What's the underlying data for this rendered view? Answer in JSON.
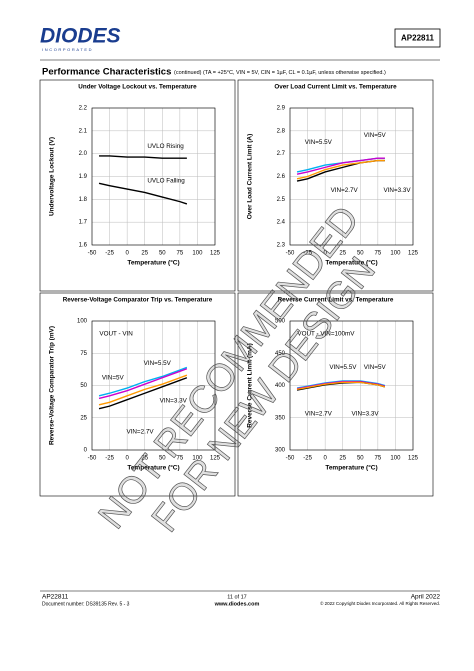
{
  "header": {
    "logo": "DIODES",
    "logo_sub": "INCORPORATED",
    "part": "AP22811"
  },
  "section": {
    "title": "Performance Characteristics",
    "conditions": "(continued) (TA = +25°C, VIN = 5V, CIN = 1µF, CL = 0.1µF, unless otherwise specified.)"
  },
  "chart_data": [
    {
      "type": "line",
      "title": "Under Voltage Lockout vs. Temperature",
      "xlabel": "Temperature (°C)",
      "ylabel": "Undervoltage Lockout (V)",
      "x": [
        -40,
        -25,
        0,
        25,
        50,
        75,
        85
      ],
      "xlim": [
        -50,
        125
      ],
      "xticks": [
        -50,
        -25,
        0,
        25,
        50,
        75,
        100,
        125
      ],
      "ylim": [
        1.6,
        2.2
      ],
      "yticks": [
        1.6,
        1.7,
        1.8,
        1.9,
        {
          "value": 2,
          "label": "2.0"
        },
        2.1,
        2.2
      ],
      "grid": true,
      "annotations": [],
      "series": [
        {
          "name": "UVLO Rising",
          "color": "#000000",
          "values": [
            1.99,
            1.99,
            1.985,
            1.985,
            1.98,
            1.98,
            1.98
          ]
        },
        {
          "name": "UVLO Falling",
          "color": "#000000",
          "values": [
            1.87,
            1.86,
            1.845,
            1.83,
            1.81,
            1.79,
            1.78
          ]
        }
      ]
    },
    {
      "type": "line",
      "title": "Over Load Current Limit vs. Temperature",
      "xlabel": "Temperature (°C)",
      "ylabel": "Over Load Current Limit (A)",
      "x": [
        -40,
        -25,
        0,
        25,
        50,
        75,
        85
      ],
      "xlim": [
        -50,
        125
      ],
      "xticks": [
        -50,
        -25,
        0,
        25,
        50,
        75,
        100,
        125
      ],
      "ylim": [
        2.3,
        2.9
      ],
      "yticks": [
        2.3,
        2.4,
        2.5,
        2.6,
        2.7,
        2.8,
        2.9
      ],
      "grid": true,
      "annotations": [],
      "series": [
        {
          "name": "VIN=5.5V",
          "color": "#00b0f0",
          "values": [
            2.62,
            2.63,
            2.65,
            2.66,
            2.67,
            2.68,
            2.68
          ]
        },
        {
          "name": "VIN=5V",
          "color": "#cc00cc",
          "values": [
            2.61,
            2.62,
            2.64,
            2.66,
            2.67,
            2.68,
            2.68
          ]
        },
        {
          "name": "VIN=2.7V",
          "color": "#000000",
          "values": [
            2.58,
            2.59,
            2.62,
            2.64,
            2.66,
            2.67,
            2.67
          ]
        },
        {
          "name": "VIN=3.3V",
          "color": "#ff9900",
          "values": [
            2.59,
            2.6,
            2.63,
            2.65,
            2.66,
            2.67,
            2.67
          ]
        }
      ]
    },
    {
      "type": "line",
      "title": "Reverse-Voltage Comparator Trip vs. Temperature",
      "xlabel": "Temperature (°C)",
      "ylabel": "Reverse-Voltage Comparator Trip (mV)",
      "x": [
        -40,
        -25,
        0,
        25,
        50,
        75,
        85
      ],
      "xlim": [
        -50,
        125
      ],
      "xticks": [
        -50,
        -25,
        0,
        25,
        50,
        75,
        100,
        125
      ],
      "ylim": [
        0,
        100
      ],
      "yticks": [
        0,
        25,
        50,
        75,
        100
      ],
      "grid": true,
      "annotations": [
        "VOUT - VIN"
      ],
      "series": [
        {
          "name": "VIN=5.5V",
          "color": "#00b0f0",
          "values": [
            42,
            44,
            48,
            53,
            57,
            62,
            64
          ]
        },
        {
          "name": "VIN=5V",
          "color": "#cc00cc",
          "values": [
            40,
            42,
            46,
            51,
            56,
            61,
            63
          ]
        },
        {
          "name": "VIN=2.7V",
          "color": "#000000",
          "values": [
            32,
            34,
            39,
            44,
            49,
            54,
            56
          ]
        },
        {
          "name": "VIN=3.3V",
          "color": "#ff9900",
          "values": [
            35,
            37,
            42,
            47,
            51,
            56,
            58
          ]
        }
      ]
    },
    {
      "type": "line",
      "title": "Reverse Current Limit vs. Temperature",
      "xlabel": "Temperature (°C)",
      "ylabel": "Reverse Current Limit (mA)",
      "x": [
        -40,
        -25,
        0,
        25,
        50,
        75,
        85
      ],
      "xlim": [
        -50,
        125
      ],
      "xticks": [
        -50,
        -25,
        0,
        25,
        50,
        75,
        100,
        125
      ],
      "ylim": [
        300,
        500
      ],
      "yticks": [
        300,
        350,
        400,
        450,
        500
      ],
      "grid": true,
      "annotations": [
        "VOUT - VIN=100mV"
      ],
      "series": [
        {
          "name": "VIN=5.5V",
          "color": "#00b0f0",
          "values": [
            396,
            399,
            404,
            407,
            407,
            403,
            400
          ]
        },
        {
          "name": "VIN=5V",
          "color": "#cc00cc",
          "values": [
            395,
            398,
            403,
            406,
            406,
            402,
            399
          ]
        },
        {
          "name": "VIN=2.7V",
          "color": "#000000",
          "values": [
            393,
            396,
            401,
            404,
            405,
            401,
            398
          ]
        },
        {
          "name": "VIN=3.3V",
          "color": "#ff9900",
          "values": [
            394,
            397,
            402,
            405,
            405,
            401,
            398
          ]
        }
      ]
    }
  ],
  "watermark": [
    "NOT RECOMMENDED",
    "FOR NEW DESIGN"
  ],
  "footer": {
    "part": "AP22811",
    "docnum": "Document number: DS39135 Rev. 5 - 3",
    "page": "11 of 17",
    "url": "www.diodes.com",
    "date": "April 2022",
    "copyright": "© 2022 Copyright Diodes Incorporated. All Rights Reserved."
  }
}
